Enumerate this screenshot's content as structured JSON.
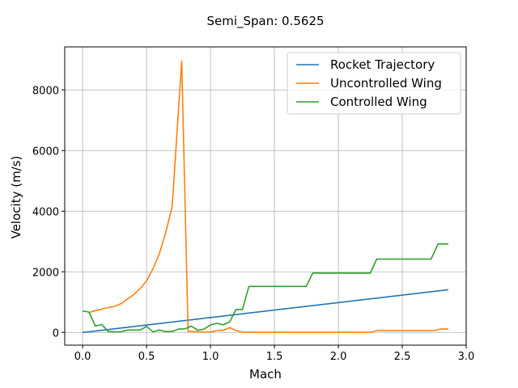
{
  "chart_data": {
    "type": "line",
    "title": "Semi_Span: 0.5625",
    "xlabel": "Mach",
    "ylabel": "Velocity (m/s)",
    "xlim": [
      -0.14,
      3.0
    ],
    "ylim": [
      -420,
      9420
    ],
    "xticks": [
      0.0,
      0.5,
      1.0,
      1.5,
      2.0,
      2.5,
      3.0
    ],
    "xtick_labels": [
      "0.0",
      "0.5",
      "1.0",
      "1.5",
      "2.0",
      "2.5",
      "3.0"
    ],
    "yticks": [
      0,
      2000,
      4000,
      6000,
      8000
    ],
    "ytick_labels": [
      "0",
      "2000",
      "4000",
      "6000",
      "8000"
    ],
    "grid": true,
    "legend_position": "top-right",
    "series": [
      {
        "name": "Rocket Trajectory",
        "color": "#1f77b4",
        "x": [
          0.0,
          2.86
        ],
        "y": [
          0,
          1410
        ]
      },
      {
        "name": "Uncontrolled Wing",
        "color": "#ff7f0e",
        "x": [
          0.05,
          0.1,
          0.15,
          0.2,
          0.25,
          0.3,
          0.35,
          0.4,
          0.45,
          0.5,
          0.55,
          0.6,
          0.65,
          0.7,
          0.775,
          0.825,
          0.9,
          1.0,
          1.05,
          1.1,
          1.15,
          1.2,
          1.25,
          1.3,
          1.4,
          1.5,
          1.6,
          1.7,
          1.8,
          1.9,
          2.0,
          2.1,
          2.2,
          2.25,
          2.3,
          2.4,
          2.5,
          2.6,
          2.7,
          2.75,
          2.8,
          2.86
        ],
        "y": [
          660,
          720,
          770,
          820,
          860,
          950,
          1100,
          1250,
          1450,
          1700,
          2100,
          2600,
          3300,
          4150,
          8950,
          40,
          20,
          15,
          60,
          70,
          160,
          60,
          10,
          5,
          5,
          5,
          5,
          5,
          5,
          5,
          5,
          5,
          5,
          5,
          60,
          60,
          60,
          60,
          60,
          60,
          110,
          110
        ]
      },
      {
        "name": "Controlled Wing",
        "color": "#2ca02c",
        "x": [
          0.0,
          0.05,
          0.1,
          0.15,
          0.2,
          0.25,
          0.3,
          0.35,
          0.4,
          0.45,
          0.5,
          0.55,
          0.6,
          0.65,
          0.7,
          0.75,
          0.8,
          0.85,
          0.9,
          0.95,
          1.0,
          1.05,
          1.1,
          1.15,
          1.2,
          1.25,
          1.3,
          1.35,
          1.375,
          1.45,
          1.55,
          1.65,
          1.75,
          1.8,
          1.9,
          2.0,
          2.1,
          2.2,
          2.25,
          2.3,
          2.4,
          2.5,
          2.6,
          2.7,
          2.725,
          2.78,
          2.86
        ],
        "y": [
          710,
          670,
          210,
          260,
          30,
          20,
          20,
          80,
          80,
          80,
          200,
          20,
          80,
          30,
          30,
          110,
          120,
          210,
          70,
          110,
          250,
          300,
          250,
          350,
          760,
          760,
          1520,
          1520,
          1520,
          1520,
          1520,
          1520,
          1520,
          1960,
          1960,
          1960,
          1960,
          1960,
          1960,
          2420,
          2420,
          2420,
          2420,
          2420,
          2420,
          2920,
          2920
        ]
      }
    ]
  }
}
